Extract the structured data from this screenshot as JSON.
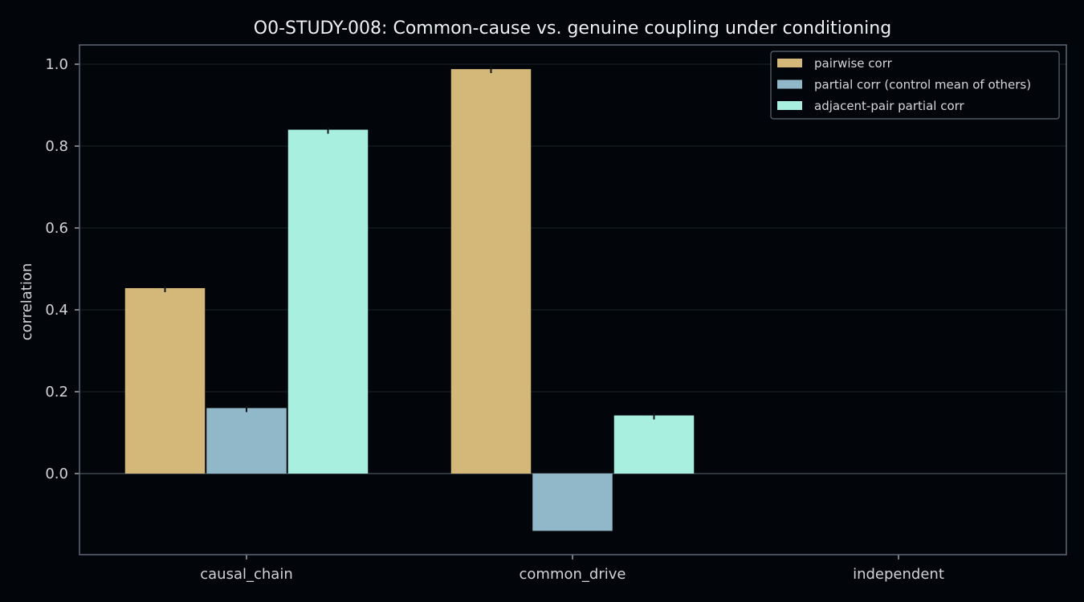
{
  "chart_data": {
    "type": "bar",
    "title": "O0-STUDY-008: Common-cause vs. genuine coupling under conditioning",
    "xlabel": "",
    "ylabel": "correlation",
    "categories": [
      "causal_chain",
      "common_drive",
      "independent"
    ],
    "yticks": [
      "0.0",
      "0.2",
      "0.4",
      "0.6",
      "0.8",
      "1.0"
    ],
    "ylim": [
      -0.2,
      1.04
    ],
    "grid": true,
    "legend_position": "top-right",
    "series": [
      {
        "name": "pairwise corr",
        "values": [
          0.453,
          0.988,
          0.0
        ],
        "color": "#d4b87a"
      },
      {
        "name": "partial corr (control mean of others)",
        "values": [
          0.16,
          -0.14,
          0.0
        ],
        "color": "#91b8c8"
      },
      {
        "name": "adjacent-pair partial corr",
        "values": [
          0.84,
          0.142,
          0.0
        ],
        "color": "#a8efe0"
      }
    ]
  }
}
